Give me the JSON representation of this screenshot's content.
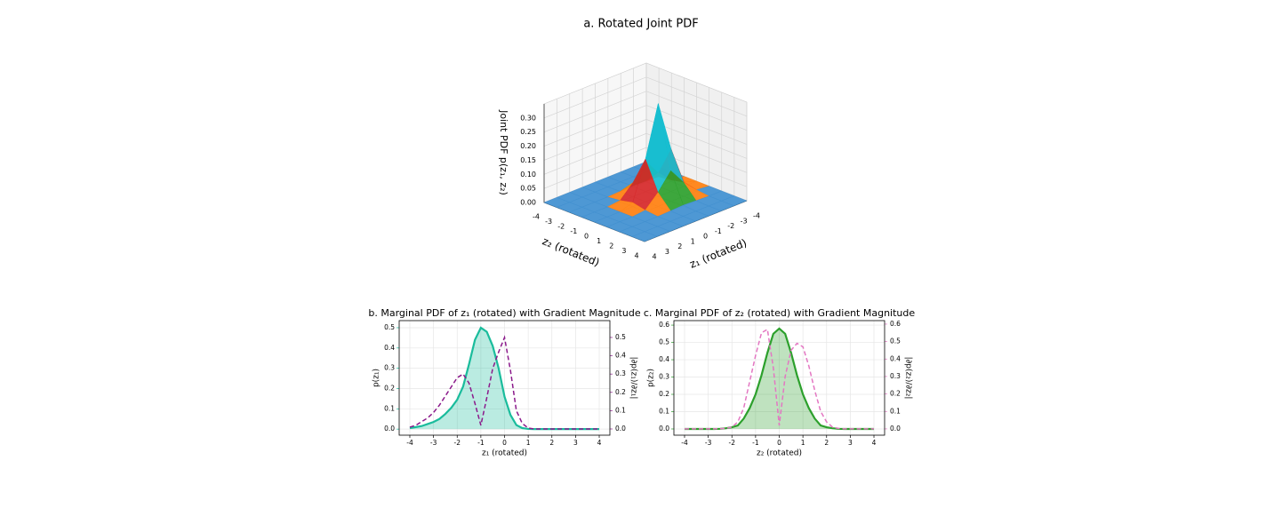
{
  "chart_data": [
    {
      "type": "surface",
      "title": "a. Rotated Joint PDF",
      "xlabel": "z₁ (rotated)",
      "ylabel": "z₂ (rotated)",
      "zlabel": "Joint PDF p(z₁, z₂)",
      "x": [
        -4,
        -3,
        -2,
        -1,
        0,
        1,
        2,
        3,
        4
      ],
      "y": [
        -4,
        -3,
        -2,
        -1,
        0,
        1,
        2,
        3,
        4
      ],
      "z": [
        [
          0,
          0,
          0,
          0,
          0,
          0,
          0,
          0,
          0
        ],
        [
          0,
          0,
          0,
          0,
          0,
          0,
          0,
          0,
          0
        ],
        [
          0,
          0,
          0.002,
          0.004,
          0.002,
          0,
          0,
          0,
          0
        ],
        [
          0,
          0.005,
          0.05,
          0.109,
          0.05,
          0.005,
          0,
          0,
          0
        ],
        [
          0,
          0.015,
          0.151,
          0.33,
          0.151,
          0.015,
          0,
          0,
          0
        ],
        [
          0,
          0.005,
          0.05,
          0.109,
          0.05,
          0.005,
          0,
          0,
          0
        ],
        [
          0,
          0,
          0.002,
          0.004,
          0.002,
          0,
          0,
          0,
          0
        ],
        [
          0,
          0,
          0,
          0,
          0,
          0,
          0,
          0,
          0
        ],
        [
          0,
          0,
          0,
          0,
          0,
          0,
          0,
          0,
          0
        ]
      ],
      "xlim": [
        -4,
        4
      ],
      "ylim": [
        -4,
        4
      ],
      "zlim": [
        0,
        0.35
      ],
      "xticks": [
        -4,
        -3,
        -2,
        -1,
        0,
        1,
        2,
        3,
        4
      ],
      "yticks": [
        -4,
        -3,
        -2,
        -1,
        0,
        1,
        2,
        3,
        4
      ],
      "zticks": [
        {
          "value": 0,
          "label": "0.00"
        },
        {
          "value": 0.05,
          "label": "0.05"
        },
        {
          "value": 0.1,
          "label": "0.10"
        },
        {
          "value": 0.15,
          "label": "0.15"
        },
        {
          "value": 0.2,
          "label": "0.20"
        },
        {
          "value": 0.25,
          "label": "0.25"
        },
        {
          "value": 0.3,
          "label": "0.30"
        }
      ],
      "colors": [
        "#3f8fd0",
        "#ff7f0e",
        "#2ca02c",
        "#d62728",
        "#9467bd",
        "#8c564b",
        "#e377c2",
        "#bcbd22",
        "#17becf"
      ],
      "grid": true
    },
    {
      "type": "line",
      "title": "b. Marginal PDF of z₁ (rotated) with Gradient Magnitude",
      "xlabel": "z₁ (rotated)",
      "x": [
        -4,
        -3.75,
        -3.5,
        -3.25,
        -3,
        -2.75,
        -2.5,
        -2.25,
        -2,
        -1.75,
        -1.5,
        -1.25,
        -1,
        -0.75,
        -0.5,
        -0.25,
        0,
        0.25,
        0.5,
        0.75,
        1,
        1.25,
        1.5,
        1.75,
        2,
        2.25,
        2.5,
        2.75,
        3,
        3.25,
        3.5,
        3.75,
        4
      ],
      "series": [
        {
          "name": "p(z₁)",
          "color": "#1abc9c",
          "fill": true,
          "linestyle": "solid",
          "values": [
            0.005,
            0.01,
            0.015,
            0.025,
            0.035,
            0.05,
            0.075,
            0.105,
            0.145,
            0.21,
            0.32,
            0.44,
            0.5,
            0.48,
            0.41,
            0.3,
            0.16,
            0.07,
            0.02,
            0.005,
            0.001,
            0,
            0,
            0,
            0,
            0,
            0,
            0,
            0,
            0,
            0,
            0,
            0
          ]
        },
        {
          "name": "|∂p(z₁)/∂z₁|",
          "color": "#8b1a8b",
          "fill": false,
          "linestyle": "dashed",
          "axis": "y2",
          "values": [
            0.01,
            0.02,
            0.04,
            0.06,
            0.09,
            0.13,
            0.18,
            0.23,
            0.28,
            0.3,
            0.25,
            0.14,
            0.02,
            0.17,
            0.33,
            0.42,
            0.5,
            0.32,
            0.1,
            0.03,
            0.005,
            0,
            0,
            0,
            0,
            0,
            0,
            0,
            0,
            0,
            0,
            0,
            0
          ]
        }
      ],
      "xlim": [
        -4.45,
        4.45
      ],
      "ylim": [
        -0.03,
        0.535
      ],
      "y2lim": [
        -0.034,
        0.592
      ],
      "xticks": [
        -4,
        -3,
        -2,
        -1,
        0,
        1,
        2,
        3,
        4
      ],
      "yticks": [
        {
          "value": 0,
          "label": "0.0"
        },
        {
          "value": 0.1,
          "label": "0.1"
        },
        {
          "value": 0.2,
          "label": "0.2"
        },
        {
          "value": 0.3,
          "label": "0.3"
        },
        {
          "value": 0.4,
          "label": "0.4"
        },
        {
          "value": 0.5,
          "label": "0.5"
        }
      ],
      "y2ticks": [
        {
          "value": 0,
          "label": "0.0"
        },
        {
          "value": 0.1,
          "label": "0.1"
        },
        {
          "value": 0.2,
          "label": "0.2"
        },
        {
          "value": 0.3,
          "label": "0.3"
        },
        {
          "value": 0.4,
          "label": "0.4"
        },
        {
          "value": 0.5,
          "label": "0.5"
        }
      ],
      "grid": true
    },
    {
      "type": "line",
      "title": "c. Marginal PDF of z₂ (rotated) with Gradient Magnitude",
      "xlabel": "z₂ (rotated)",
      "x": [
        -4,
        -3.75,
        -3.5,
        -3.25,
        -3,
        -2.75,
        -2.5,
        -2.25,
        -2,
        -1.75,
        -1.5,
        -1.25,
        -1,
        -0.75,
        -0.5,
        -0.25,
        0,
        0.25,
        0.5,
        0.75,
        1,
        1.25,
        1.5,
        1.75,
        2,
        2.25,
        2.5,
        2.75,
        3,
        3.25,
        3.5,
        3.75,
        4
      ],
      "series": [
        {
          "name": "p(z₂)",
          "color": "#2ca02c",
          "fill": true,
          "linestyle": "solid",
          "values": [
            0,
            0,
            0,
            0,
            0,
            0,
            0.001,
            0.004,
            0.01,
            0.02,
            0.06,
            0.12,
            0.2,
            0.31,
            0.44,
            0.55,
            0.58,
            0.55,
            0.44,
            0.31,
            0.2,
            0.12,
            0.06,
            0.02,
            0.01,
            0.004,
            0.001,
            0,
            0,
            0,
            0,
            0,
            0
          ]
        },
        {
          "name": "|∂p(z₂)/∂z₂|",
          "color": "#e377c2",
          "fill": false,
          "linestyle": "dashed",
          "axis": "y2",
          "values": [
            0,
            0,
            0,
            0,
            0,
            0,
            0.001,
            0.003,
            0.01,
            0.04,
            0.12,
            0.27,
            0.42,
            0.55,
            0.57,
            0.35,
            0.02,
            0.3,
            0.45,
            0.49,
            0.47,
            0.36,
            0.22,
            0.1,
            0.04,
            0.01,
            0.003,
            0,
            0,
            0,
            0,
            0,
            0
          ]
        }
      ],
      "xlim": [
        -4.45,
        4.45
      ],
      "ylim": [
        -0.036,
        0.626
      ],
      "y2lim": [
        -0.036,
        0.62
      ],
      "xticks": [
        -4,
        -3,
        -2,
        -1,
        0,
        1,
        2,
        3,
        4
      ],
      "yticks": [
        {
          "value": 0,
          "label": "0.0"
        },
        {
          "value": 0.1,
          "label": "0.1"
        },
        {
          "value": 0.2,
          "label": "0.2"
        },
        {
          "value": 0.3,
          "label": "0.3"
        },
        {
          "value": 0.4,
          "label": "0.4"
        },
        {
          "value": 0.5,
          "label": "0.5"
        },
        {
          "value": 0.6,
          "label": "0.6"
        }
      ],
      "y2ticks": [
        {
          "value": 0,
          "label": "0.0"
        },
        {
          "value": 0.1,
          "label": "0.1"
        },
        {
          "value": 0.2,
          "label": "0.2"
        },
        {
          "value": 0.3,
          "label": "0.3"
        },
        {
          "value": 0.4,
          "label": "0.4"
        },
        {
          "value": 0.5,
          "label": "0.5"
        },
        {
          "value": 0.6,
          "label": "0.6"
        }
      ],
      "grid": true
    }
  ]
}
